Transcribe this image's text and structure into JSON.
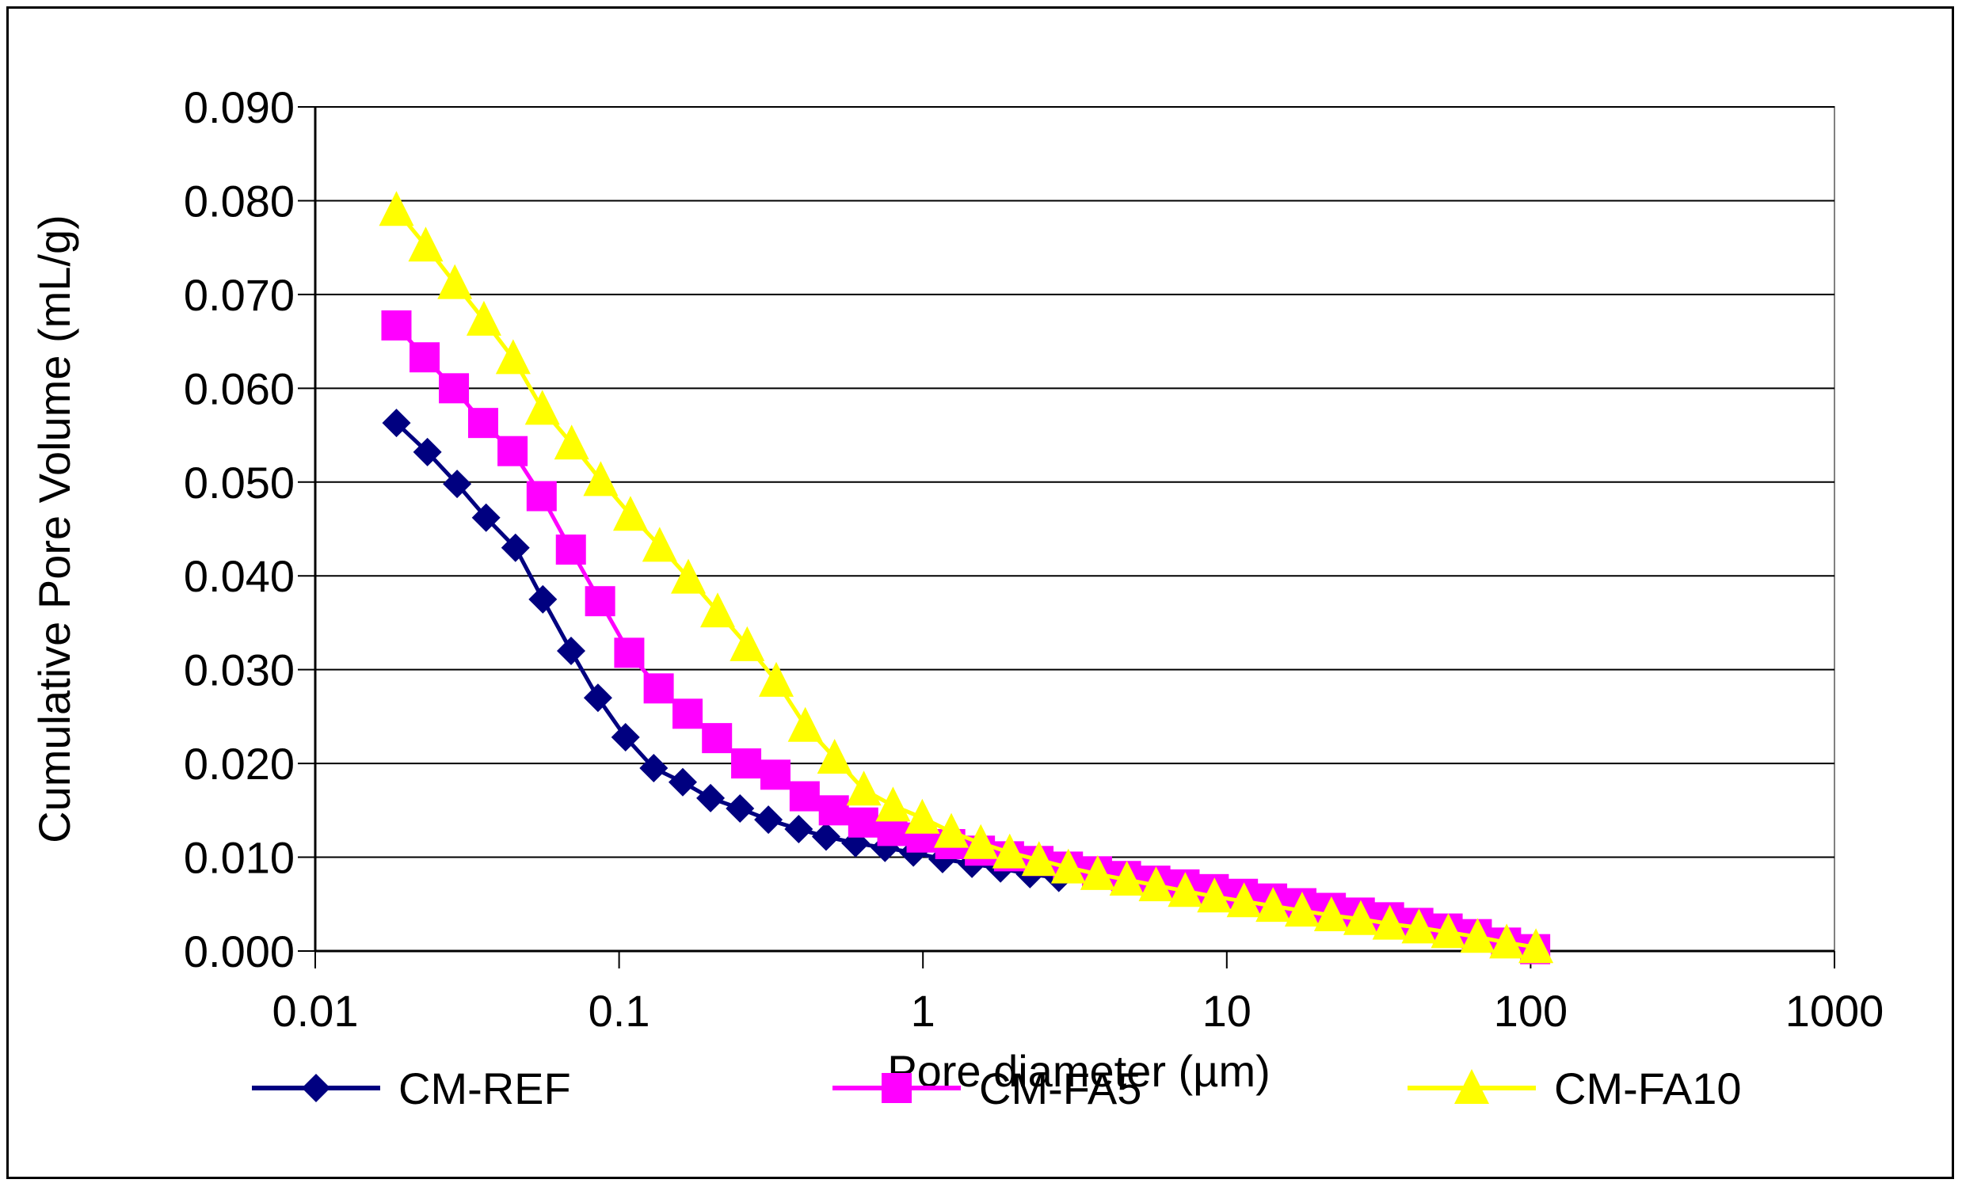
{
  "chart_data": {
    "type": "line",
    "xlabel": "Pore diameter (µm)",
    "ylabel": "Cumulative Pore Volume (mL/g)",
    "x_scale": "log",
    "xlim": [
      0.01,
      1000
    ],
    "ylim": [
      0,
      0.09
    ],
    "x_ticks": [
      0.01,
      0.1,
      1,
      10,
      100,
      1000
    ],
    "x_tick_labels": [
      "0.01",
      "0.1",
      "1",
      "10",
      "100",
      "1000"
    ],
    "y_ticks": [
      0,
      0.01,
      0.02,
      0.03,
      0.04,
      0.05,
      0.06,
      0.07,
      0.08,
      0.09
    ],
    "y_tick_labels": [
      "0.000",
      "0.010",
      "0.020",
      "0.030",
      "0.040",
      "0.050",
      "0.060",
      "0.070",
      "0.080",
      "0.090"
    ],
    "grid": "horizontal",
    "legend_position": "bottom",
    "series": [
      {
        "name": "CM-REF",
        "color": "#000080",
        "marker": "diamond",
        "x": [
          0.0185,
          0.0234,
          0.0293,
          0.0365,
          0.0456,
          0.0561,
          0.0695,
          0.0852,
          0.105,
          0.13,
          0.162,
          0.2,
          0.25,
          0.31,
          0.39,
          0.48,
          0.6,
          0.75,
          0.93,
          1.16,
          1.45,
          1.8,
          2.25,
          2.8
        ],
        "y": [
          0.0563,
          0.0532,
          0.0498,
          0.0462,
          0.043,
          0.0375,
          0.032,
          0.027,
          0.0228,
          0.0195,
          0.018,
          0.0163,
          0.0152,
          0.014,
          0.013,
          0.0122,
          0.0115,
          0.011,
          0.0105,
          0.0098,
          0.0093,
          0.0088,
          0.0082,
          0.0078
        ]
      },
      {
        "name": "CM-FA5",
        "color": "#FF00FF",
        "marker": "square",
        "x": [
          0.0185,
          0.0229,
          0.0286,
          0.0357,
          0.0446,
          0.0556,
          0.0694,
          0.0866,
          0.108,
          0.135,
          0.168,
          0.21,
          0.262,
          0.327,
          0.408,
          0.509,
          0.636,
          0.793,
          0.99,
          1.23,
          1.54,
          1.92,
          2.4,
          3.0,
          3.74,
          4.66,
          5.82,
          7.26,
          9.06,
          11.3,
          14.1,
          17.6,
          22.0,
          27.4,
          34.2,
          42.7,
          53.3,
          66.5,
          83.0,
          103.5
        ],
        "y": [
          0.0667,
          0.0633,
          0.06,
          0.0563,
          0.0533,
          0.0485,
          0.0428,
          0.0373,
          0.0318,
          0.028,
          0.0253,
          0.0227,
          0.02,
          0.0188,
          0.0165,
          0.015,
          0.0137,
          0.0128,
          0.0121,
          0.0114,
          0.0107,
          0.0101,
          0.0096,
          0.009,
          0.0085,
          0.008,
          0.0075,
          0.0071,
          0.0066,
          0.0061,
          0.0056,
          0.0051,
          0.0046,
          0.0041,
          0.0036,
          0.003,
          0.0024,
          0.0018,
          0.0009,
          0.0002
        ]
      },
      {
        "name": "CM-FA10",
        "color": "#FFFF00",
        "marker": "triangle",
        "x": [
          0.0185,
          0.0231,
          0.0288,
          0.0359,
          0.0448,
          0.0559,
          0.0698,
          0.087,
          0.109,
          0.136,
          0.169,
          0.211,
          0.264,
          0.329,
          0.41,
          0.512,
          0.639,
          0.797,
          0.995,
          1.24,
          1.55,
          1.93,
          2.41,
          3.01,
          3.76,
          4.69,
          5.85,
          7.3,
          9.11,
          11.4,
          14.2,
          17.7,
          22.1,
          27.6,
          34.4,
          42.9,
          53.6,
          66.9,
          83.4,
          104.1
        ],
        "y": [
          0.079,
          0.0752,
          0.0712,
          0.0673,
          0.0632,
          0.0578,
          0.0541,
          0.0502,
          0.0465,
          0.0432,
          0.0398,
          0.0362,
          0.0326,
          0.0288,
          0.024,
          0.0206,
          0.0172,
          0.0155,
          0.0142,
          0.0127,
          0.0115,
          0.0105,
          0.0097,
          0.0089,
          0.0082,
          0.0076,
          0.007,
          0.0064,
          0.0058,
          0.0053,
          0.0048,
          0.0043,
          0.0038,
          0.0034,
          0.0029,
          0.0025,
          0.002,
          0.0015,
          0.0009,
          0.0004
        ]
      }
    ]
  }
}
